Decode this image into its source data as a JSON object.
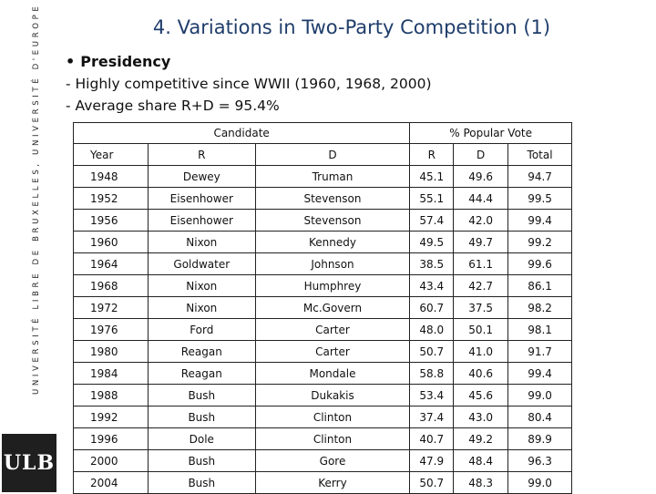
{
  "sidebar": {
    "vertical_text": "UNIVERSITÉ LIBRE DE BRUXELLES, UNIVERSITÉ D'EUROPE",
    "logo_text": "ULB"
  },
  "slide": {
    "title": "4. Variations in Two-Party Competition (1)",
    "bullet": "Presidency",
    "lines": [
      "- Highly competitive since WWII (1960, 1968, 2000)",
      "- Average share R+D = 95.4%"
    ]
  },
  "table": {
    "group_headers": [
      "Candidate",
      "% Popular Vote"
    ],
    "columns": [
      "Year",
      "R",
      "D",
      "R",
      "D",
      "Total"
    ],
    "rows": [
      [
        "1948",
        "Dewey",
        "Truman",
        "45.1",
        "49.6",
        "94.7"
      ],
      [
        "1952",
        "Eisenhower",
        "Stevenson",
        "55.1",
        "44.4",
        "99.5"
      ],
      [
        "1956",
        "Eisenhower",
        "Stevenson",
        "57.4",
        "42.0",
        "99.4"
      ],
      [
        "1960",
        "Nixon",
        "Kennedy",
        "49.5",
        "49.7",
        "99.2"
      ],
      [
        "1964",
        "Goldwater",
        "Johnson",
        "38.5",
        "61.1",
        "99.6"
      ],
      [
        "1968",
        "Nixon",
        "Humphrey",
        "43.4",
        "42.7",
        "86.1"
      ],
      [
        "1972",
        "Nixon",
        "Mc.Govern",
        "60.7",
        "37.5",
        "98.2"
      ],
      [
        "1976",
        "Ford",
        "Carter",
        "48.0",
        "50.1",
        "98.1"
      ],
      [
        "1980",
        "Reagan",
        "Carter",
        "50.7",
        "41.0",
        "91.7"
      ],
      [
        "1984",
        "Reagan",
        "Mondale",
        "58.8",
        "40.6",
        "99.4"
      ],
      [
        "1988",
        "Bush",
        "Dukakis",
        "53.4",
        "45.6",
        "99.0"
      ],
      [
        "1992",
        "Bush",
        "Clinton",
        "37.4",
        "43.0",
        "80.4"
      ],
      [
        "1996",
        "Dole",
        "Clinton",
        "40.7",
        "49.2",
        "89.9"
      ],
      [
        "2000",
        "Bush",
        "Gore",
        "47.9",
        "48.4",
        "96.3"
      ],
      [
        "2004",
        "Bush",
        "Kerry",
        "50.7",
        "48.3",
        "99.0"
      ]
    ]
  }
}
